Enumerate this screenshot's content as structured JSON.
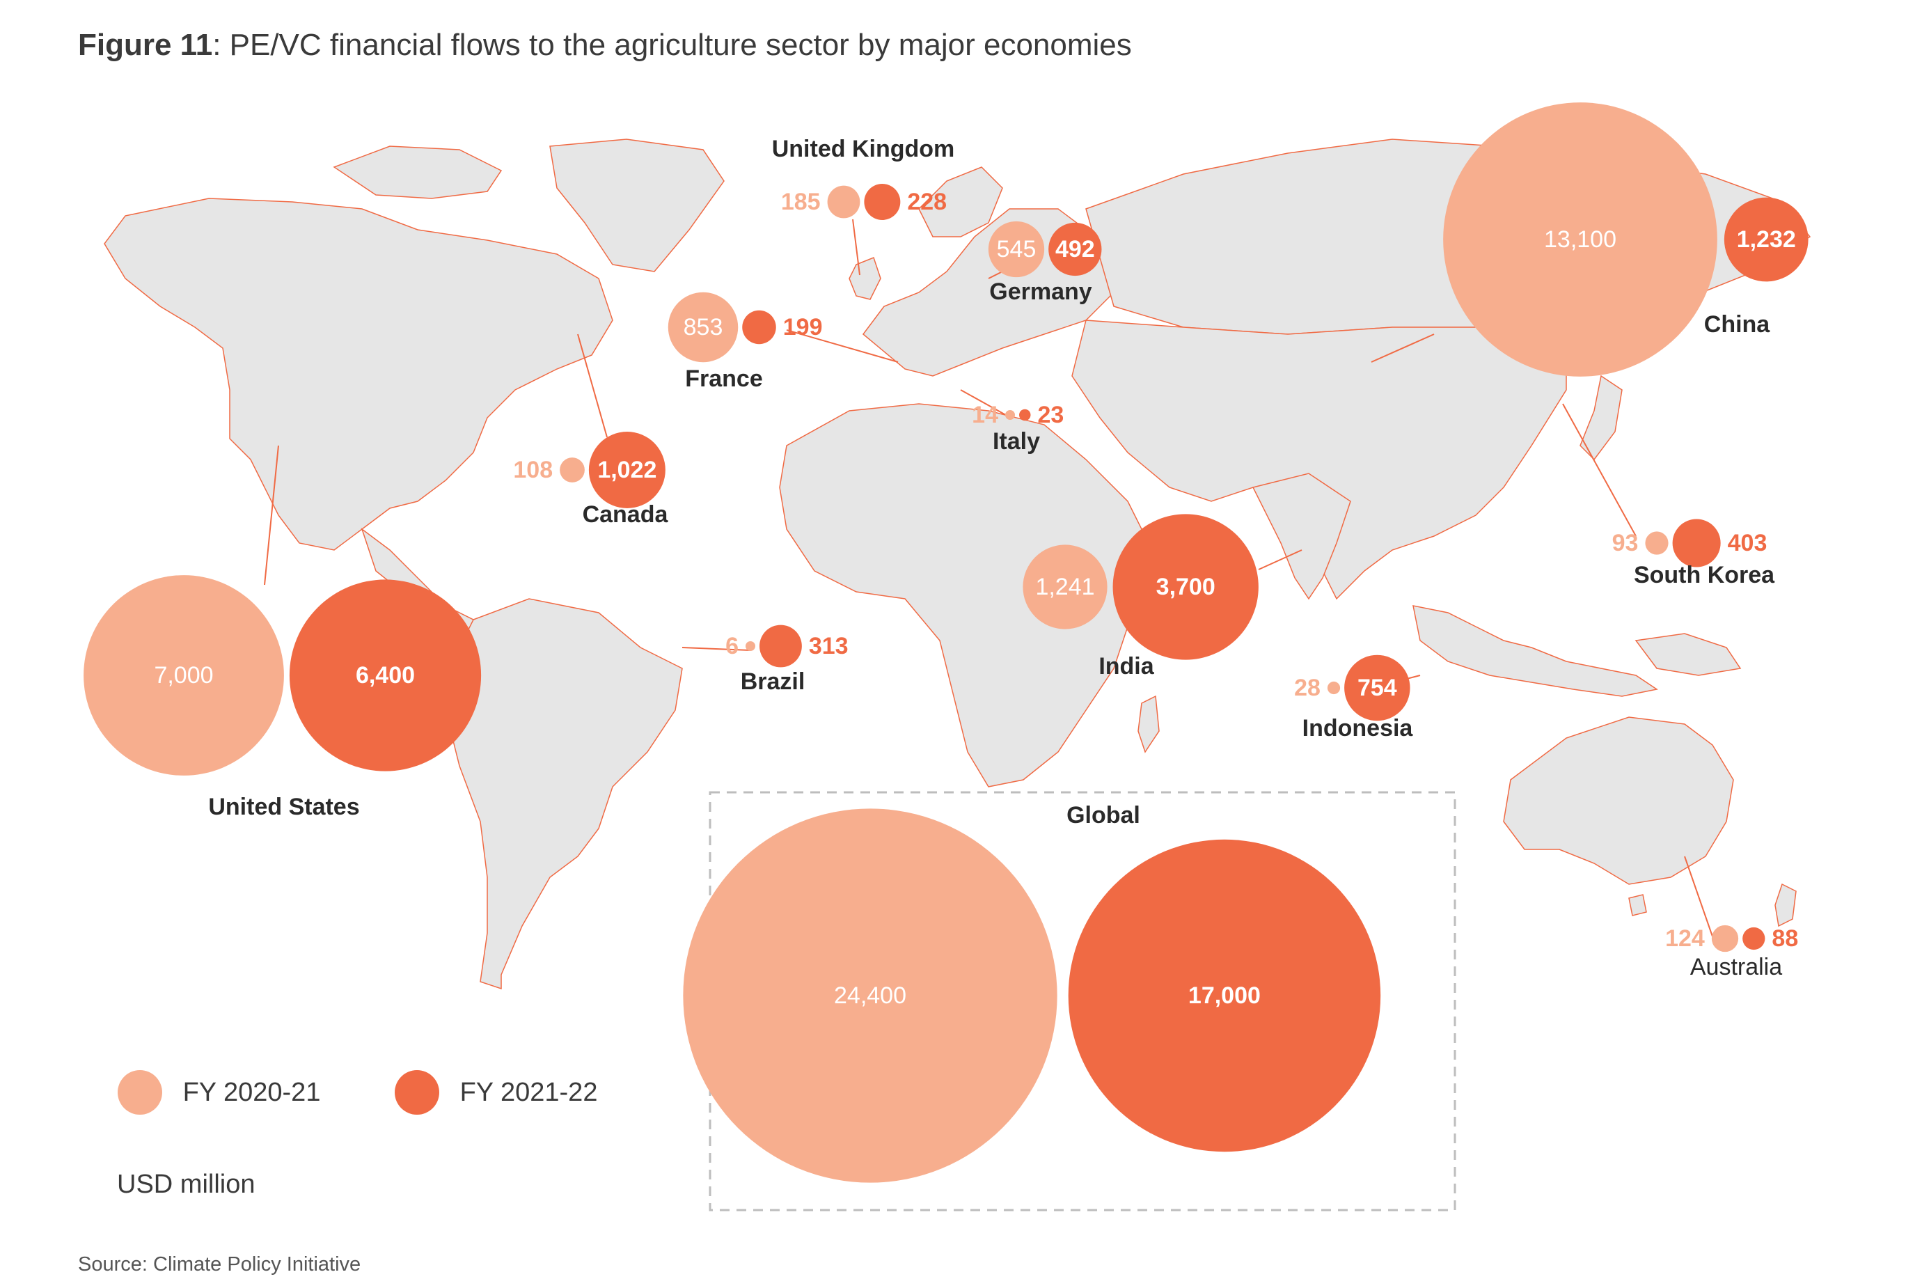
{
  "title_bold": "Figure 11",
  "title_rest": ": PE/VC financial flows to the agriculture sector by major economies",
  "legend": [
    {
      "label": "FY 2020-21",
      "color": "#f7ae8e"
    },
    {
      "label": "FY 2021-22",
      "color": "#f06a44"
    }
  ],
  "unit": "USD million",
  "source": "Source: Climate Policy Initiative",
  "colors": {
    "fy2021": "#f7ae8e",
    "fy2122": "#f06a44",
    "land": "#e6e6e6",
    "leader": "#f06a44",
    "box": "#bdbdbd"
  },
  "chart_data": {
    "type": "bubble-map",
    "series": [
      "FY 2020-21",
      "FY 2021-22"
    ],
    "countries": [
      {
        "name": "United Kingdom",
        "fy2021": 185,
        "fy2122": 228,
        "labels": [
          "185",
          "228"
        ]
      },
      {
        "name": "Germany",
        "fy2021": 545,
        "fy2122": 492,
        "labels": [
          "545",
          "492"
        ]
      },
      {
        "name": "France",
        "fy2021": 853,
        "fy2122": 199,
        "labels": [
          "853",
          "199"
        ]
      },
      {
        "name": "Italy",
        "fy2021": 14,
        "fy2122": 23,
        "labels": [
          "14",
          "23"
        ]
      },
      {
        "name": "China",
        "fy2021": 13100,
        "fy2122": 1232,
        "labels": [
          "13,100",
          "1,232"
        ]
      },
      {
        "name": "Canada",
        "fy2021": 108,
        "fy2122": 1022,
        "labels": [
          "108",
          "1,022"
        ]
      },
      {
        "name": "United States",
        "fy2021": 7000,
        "fy2122": 6400,
        "labels": [
          "7,000",
          "6,400"
        ]
      },
      {
        "name": "Brazil",
        "fy2021": 6,
        "fy2122": 313,
        "labels": [
          "6",
          "313"
        ]
      },
      {
        "name": "India",
        "fy2021": 1241,
        "fy2122": 3700,
        "labels": [
          "1,241",
          "3,700"
        ]
      },
      {
        "name": "South Korea",
        "fy2021": 93,
        "fy2122": 403,
        "labels": [
          "93",
          "403"
        ]
      },
      {
        "name": "Indonesia",
        "fy2021": 28,
        "fy2122": 754,
        "labels": [
          "28",
          "754"
        ]
      },
      {
        "name": "Australia",
        "fy2021": 124,
        "fy2122": 88,
        "labels": [
          "124",
          "88"
        ]
      },
      {
        "name": "Global",
        "fy2021": 24400,
        "fy2122": 17000,
        "labels": [
          "24,400",
          "17,000"
        ]
      }
    ]
  }
}
